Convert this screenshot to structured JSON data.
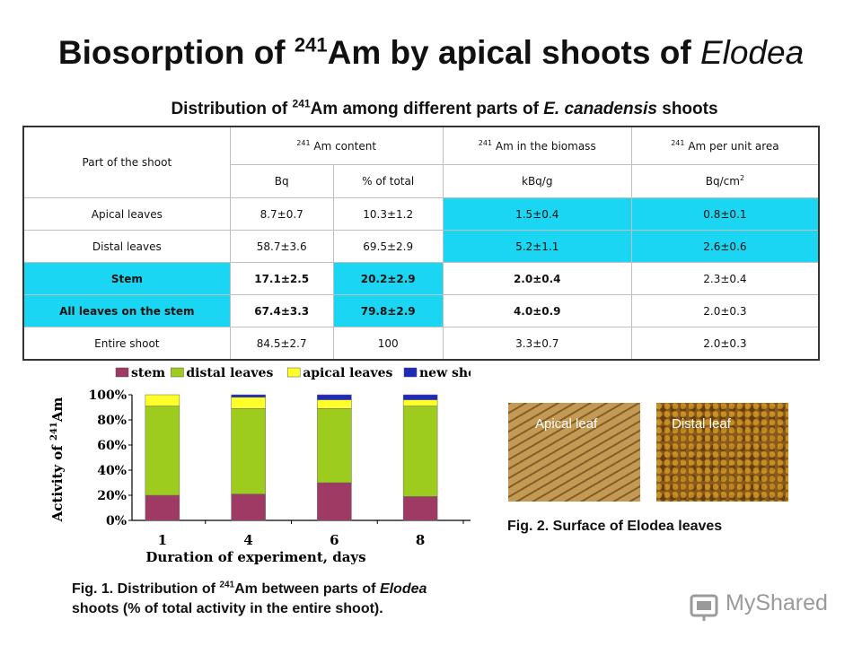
{
  "title": {
    "prefix": "Biosorption of ",
    "sup": "241",
    "middle": "Am by apical shoots of ",
    "italic": "Elodea"
  },
  "subtitle": {
    "prefix": "Distribution of ",
    "sup": "241",
    "middle": "Am among different parts of ",
    "italic": "E. canadensis",
    "suffix": " shoots"
  },
  "table": {
    "part_header": "Part of the shoot",
    "groups": [
      {
        "sup": "241",
        "label": "Am content"
      },
      {
        "sup": "241",
        "label": "Am in the biomass"
      },
      {
        "sup": "241",
        "label": "Am per unit area"
      }
    ],
    "units": [
      "Bq",
      "% of total",
      "kBq/g",
      "Bq/cm"
    ],
    "unit_sup": "2",
    "rows": [
      {
        "part": "Apical leaves",
        "bq": "8.7±0.7",
        "pct": "10.3±1.2",
        "kbq": "1.5±0.4",
        "bqcm": "0.8±0.1"
      },
      {
        "part": "Distal leaves",
        "bq": "58.7±3.6",
        "pct": "69.5±2.9",
        "kbq": "5.2±1.1",
        "bqcm": "2.6±0.6"
      },
      {
        "part": "Stem",
        "bq": "17.1±2.5",
        "pct": "20.2±2.9",
        "kbq": "2.0±0.4",
        "bqcm": "2.3±0.4"
      },
      {
        "part": "All leaves on the stem",
        "bq": "67.4±3.3",
        "pct": "79.8±2.9",
        "kbq": "4.0±0.9",
        "bqcm": "2.0±0.3"
      },
      {
        "part": "Entire shoot",
        "bq": "84.5±2.7",
        "pct": "100",
        "kbq": "3.3±0.7",
        "bqcm": "2.0±0.3"
      }
    ]
  },
  "chart_data": {
    "type": "bar",
    "stacked": true,
    "categories": [
      "1",
      "4",
      "6",
      "8"
    ],
    "series": [
      {
        "name": "stem",
        "color": "#9e3a64",
        "values": [
          20,
          21,
          30,
          19
        ]
      },
      {
        "name": "distal leaves",
        "color": "#9dcc1e",
        "values": [
          71,
          68,
          59,
          72
        ]
      },
      {
        "name": "apical leaves",
        "color": "#ffff2a",
        "values": [
          9,
          9,
          7,
          5
        ]
      },
      {
        "name": "new shoots",
        "color": "#1f2ab8",
        "values": [
          0,
          2,
          4,
          4
        ]
      }
    ],
    "ylim": [
      0,
      100
    ],
    "yticks": [
      "0%",
      "20%",
      "40%",
      "60%",
      "80%",
      "100%"
    ],
    "xlabel": "Duration of experiment, days",
    "ylabel_prefix": "Activity of ",
    "ylabel_sup": "241",
    "ylabel_suffix": "Am",
    "legend": "top"
  },
  "photos": [
    {
      "label": "Apical leaf",
      "color": "#b78d4a"
    },
    {
      "label": "Distal leaf",
      "color": "#8a5a1c"
    }
  ],
  "fig2_caption": "Fig. 2. Surface of Elodea leaves",
  "fig1_caption": {
    "prefix": "Fig. 1. Distribution of ",
    "sup": "241",
    "middle": "Am between parts of ",
    "italic": "Elodea",
    "line2": "shoots (% of total activity in the entire shoot)."
  },
  "logo_text": "MyShared"
}
